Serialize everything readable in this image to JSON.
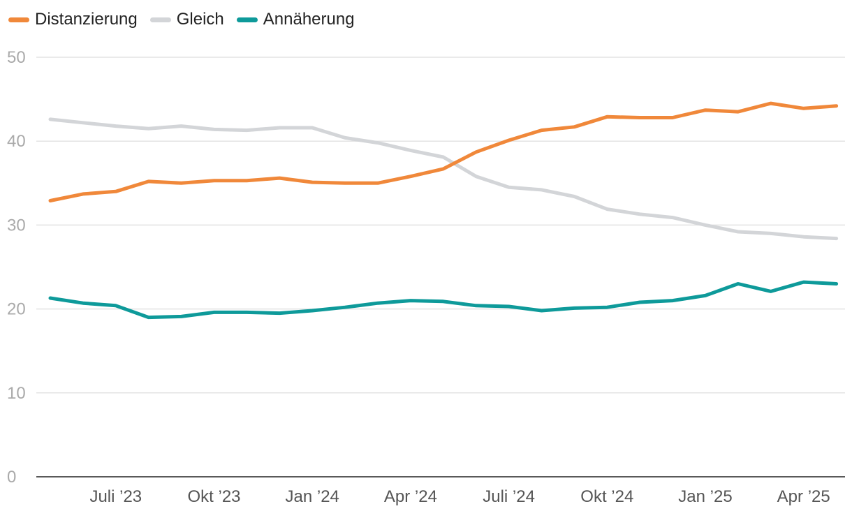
{
  "chart_data": {
    "type": "line",
    "x": [
      "2023-05",
      "2023-06",
      "2023-07",
      "2023-08",
      "2023-09",
      "2023-10",
      "2023-11",
      "2023-12",
      "2024-01",
      "2024-02",
      "2024-03",
      "2024-04",
      "2024-05",
      "2024-06",
      "2024-07",
      "2024-08",
      "2024-09",
      "2024-10",
      "2024-11",
      "2024-12",
      "2025-01",
      "2025-02",
      "2025-03",
      "2025-04",
      "2025-05"
    ],
    "x_tick_labels": [
      "Juli ’23",
      "Okt ’23",
      "Jan ’24",
      "Apr ’24",
      "Juli ’24",
      "Okt ’24",
      "Jan ’25",
      "Apr ’25"
    ],
    "x_tick_positions": [
      "2023-07",
      "2023-10",
      "2024-01",
      "2024-04",
      "2024-07",
      "2024-10",
      "2025-01",
      "2025-04"
    ],
    "y_ticks": [
      0,
      10,
      20,
      30,
      40,
      50
    ],
    "ylim": [
      0,
      50
    ],
    "grid": true,
    "legend_position": "top-left",
    "series": [
      {
        "name": "Distanzierung",
        "color": "#f0883a",
        "values": [
          32.9,
          33.7,
          34.0,
          35.2,
          35.0,
          35.3,
          35.3,
          35.6,
          35.1,
          35.0,
          35.0,
          35.8,
          36.7,
          38.7,
          40.1,
          41.3,
          41.7,
          42.9,
          42.8,
          42.8,
          43.7,
          43.5,
          44.5,
          43.9,
          44.2
        ]
      },
      {
        "name": "Gleich",
        "color": "#d3d5d8",
        "values": [
          42.6,
          42.2,
          41.8,
          41.5,
          41.8,
          41.4,
          41.3,
          41.6,
          41.6,
          40.4,
          39.8,
          38.9,
          38.1,
          35.8,
          34.5,
          34.2,
          33.4,
          31.9,
          31.3,
          30.9,
          30.0,
          29.2,
          29.0,
          28.6,
          28.4
        ]
      },
      {
        "name": "Annäherung",
        "color": "#0e9a9a",
        "values": [
          21.3,
          20.7,
          20.4,
          19.0,
          19.1,
          19.6,
          19.6,
          19.5,
          19.8,
          20.2,
          20.7,
          21.0,
          20.9,
          20.4,
          20.3,
          19.8,
          20.1,
          20.2,
          20.8,
          21.0,
          21.6,
          23.0,
          22.1,
          23.2,
          23.0
        ]
      }
    ]
  }
}
